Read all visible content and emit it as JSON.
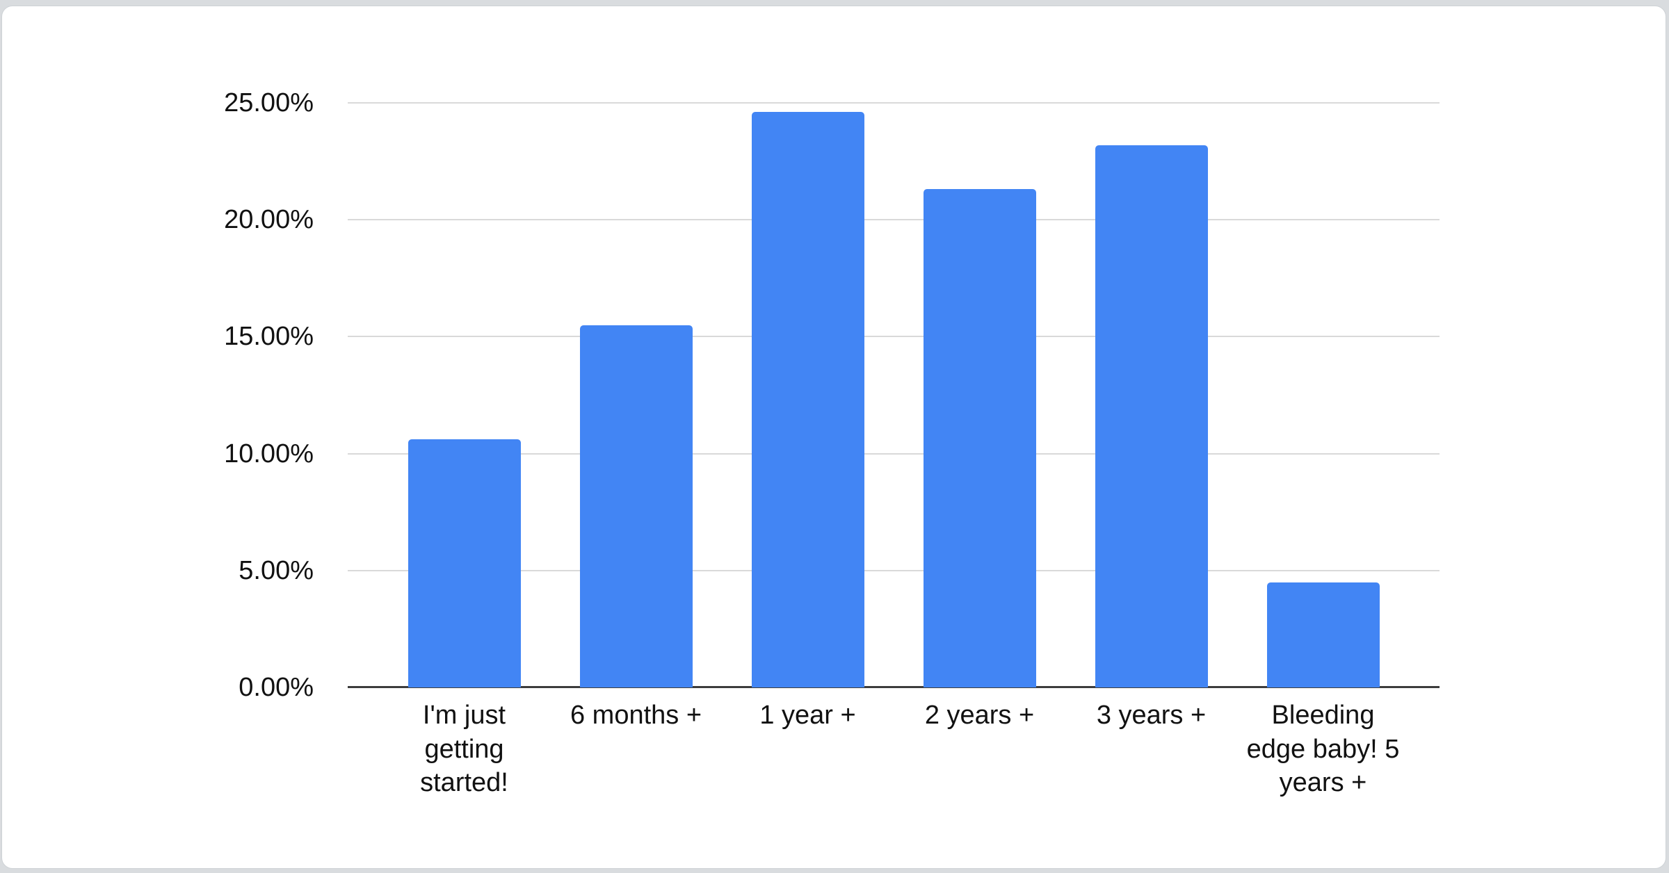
{
  "page": {
    "background_color": "#d9dcdf",
    "card_background_color": "#ffffff",
    "card_border_color": "#ced2d6"
  },
  "chart_data": {
    "type": "bar",
    "categories": [
      "I'm just getting started!",
      "6 months +",
      "1 year +",
      "2 years +",
      "3 years +",
      "Bleeding edge baby! 5 years +"
    ],
    "values": [
      10.6,
      15.5,
      24.6,
      21.3,
      23.2,
      4.5
    ],
    "value_unit": "percent",
    "y_ticks": [
      "0.00%",
      "5.00%",
      "10.00%",
      "15.00%",
      "20.00%",
      "25.00%"
    ],
    "ylim": [
      0,
      25
    ],
    "grid": true,
    "legend_position": "none",
    "bar_color": "#4285f4",
    "gridline_color": "#d9d9d9",
    "baseline_color": "#3c3c3c",
    "label_color": "#111111"
  }
}
